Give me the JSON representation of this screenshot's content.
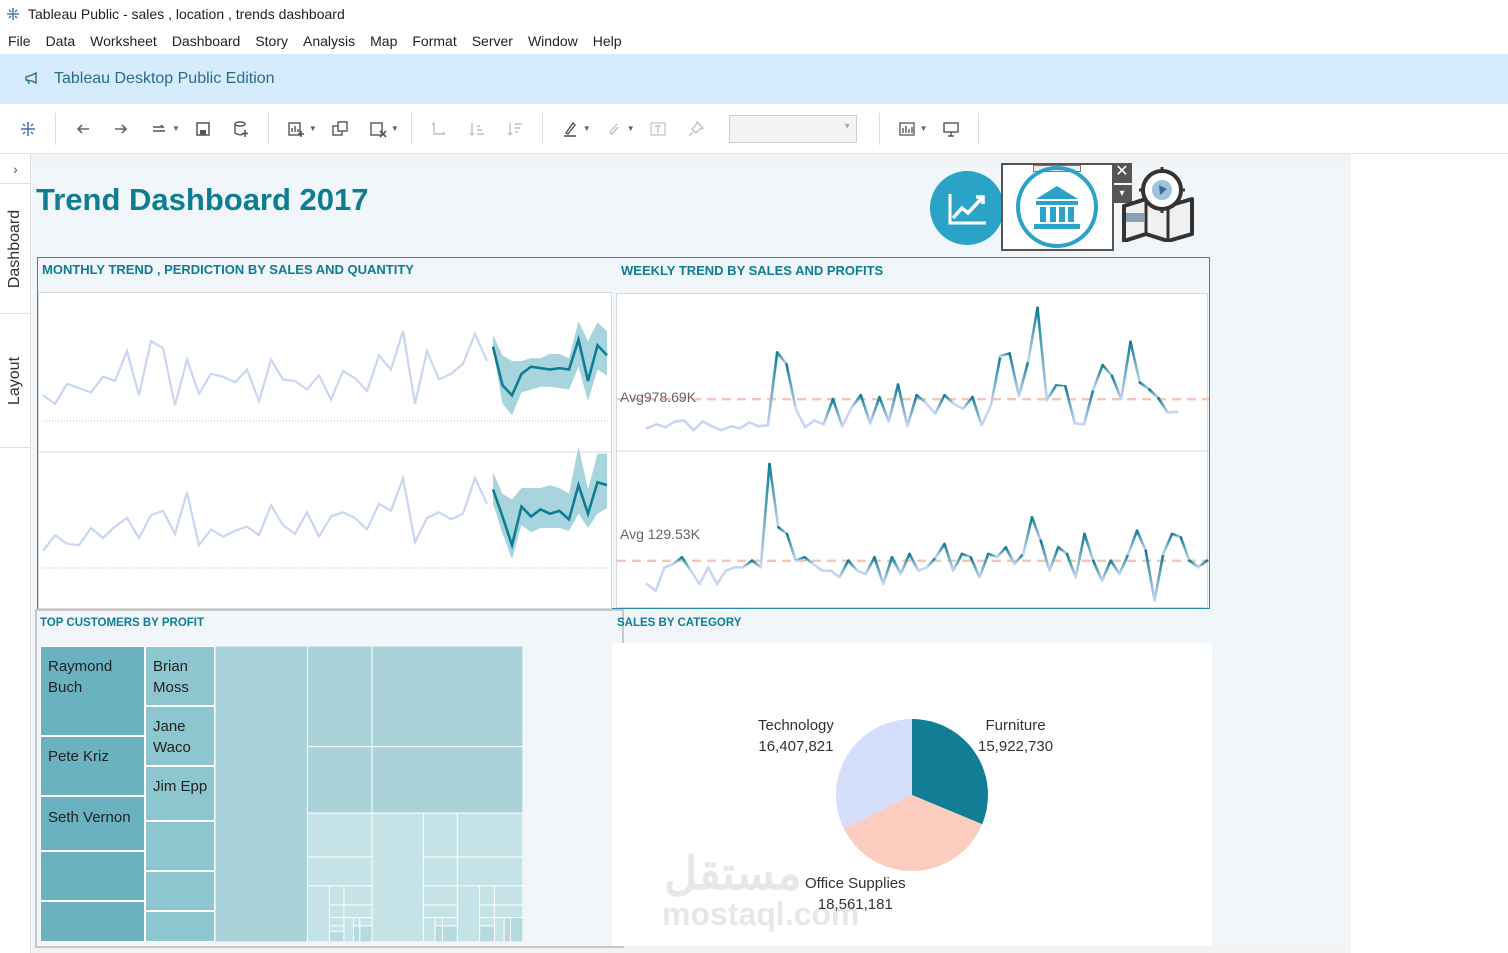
{
  "window": {
    "title": "Tableau Public - sales , location , trends dashboard"
  },
  "menu": [
    "File",
    "Data",
    "Worksheet",
    "Dashboard",
    "Story",
    "Analysis",
    "Map",
    "Format",
    "Server",
    "Window",
    "Help"
  ],
  "banner": {
    "text": "Tableau Desktop Public Edition"
  },
  "sidebar": {
    "tabs": [
      "Dashboard",
      "Layout"
    ],
    "expand_glyph": "›"
  },
  "dashboard": {
    "title": "Trend Dashboard 2017",
    "close_glyph": "✕",
    "caret_glyph": "▾",
    "icons": [
      "trend-chart-icon",
      "bank-icon",
      "map-icon"
    ]
  },
  "monthly": {
    "title": "MONTHLY TREND , PERDICTION BY SALES AND QUANTITY"
  },
  "weekly": {
    "title": "WEEKLY TREND BY SALES AND PROFITS",
    "sales_avg_label": "Avg978.69K",
    "profit_avg_label": "Avg 129.53K"
  },
  "customers": {
    "title": "TOP CUSTOMERS BY PROFIT",
    "top": [
      {
        "name": "Raymond Buch",
        "lines": [
          "Raymond",
          "Buch"
        ]
      },
      {
        "name": "Pete Kriz",
        "lines": [
          "Pete Kriz"
        ]
      },
      {
        "name": "Seth Vernon",
        "lines": [
          "Seth Vernon"
        ]
      },
      {
        "name": "Brian Moss",
        "lines": [
          "Brian",
          "Moss"
        ]
      },
      {
        "name": "Jane Waco",
        "lines": [
          "Jane",
          "Waco"
        ]
      },
      {
        "name": "Jim Epp",
        "lines": [
          "Jim Epp"
        ]
      }
    ]
  },
  "category": {
    "title": "SALES BY CATEGORY",
    "labels": {
      "technology_name": "Technology",
      "technology_value": "16,407,821",
      "furniture_name": "Furniture",
      "furniture_value": "15,922,730",
      "office_name": "Office Supplies",
      "office_value": "18,561,181"
    }
  },
  "watermark": {
    "arabic": "مستقل",
    "latin": "mostaql.com"
  },
  "colors": {
    "accent": "#0e7d93",
    "history_line": "#c9d6f3",
    "forecast_band": "#a8d5dd",
    "avg_line": "#f7c5b6",
    "pie_furniture": "#117e96",
    "pie_office": "#fbcdbf",
    "pie_technology": "#d5dffb"
  },
  "chart_data": [
    {
      "type": "line",
      "name": "monthly-sales",
      "history": [
        18,
        12,
        26,
        23,
        20,
        31,
        28,
        49,
        18,
        56,
        51,
        11,
        43,
        19,
        33,
        31,
        27,
        36,
        14,
        43,
        29,
        28,
        22,
        32,
        15,
        35,
        30,
        21,
        46,
        36,
        63,
        12,
        49,
        29,
        33,
        40,
        61,
        42
      ],
      "forecast": [
        52,
        25,
        18,
        33,
        38,
        37,
        36,
        37,
        36,
        57,
        28,
        53,
        46
      ],
      "band_upper": [
        60,
        46,
        42,
        42,
        44,
        44,
        47,
        47,
        44,
        70,
        56,
        69,
        63
      ],
      "band_lower": [
        50,
        12,
        4,
        20,
        22,
        24,
        24,
        23,
        22,
        38,
        14,
        36,
        32
      ]
    },
    {
      "type": "line",
      "name": "monthly-quantity",
      "history": [
        12,
        23,
        17,
        16,
        28,
        21,
        29,
        35,
        21,
        37,
        40,
        24,
        53,
        16,
        27,
        22,
        26,
        29,
        23,
        44,
        30,
        24,
        39,
        22,
        36,
        39,
        35,
        27,
        45,
        40,
        63,
        18,
        35,
        39,
        34,
        38,
        63,
        45
      ],
      "forecast": [
        55,
        36,
        16,
        43,
        36,
        41,
        38,
        40,
        34,
        58,
        38,
        60,
        58
      ],
      "band_upper": [
        67,
        52,
        48,
        56,
        56,
        56,
        58,
        56,
        52,
        85,
        55,
        80,
        80
      ],
      "band_lower": [
        45,
        24,
        6,
        30,
        25,
        28,
        28,
        28,
        26,
        38,
        28,
        38,
        42
      ]
    },
    {
      "type": "line",
      "name": "weekly-sales",
      "avg": 978.69,
      "unit": "K",
      "values": [
        680,
        720,
        690,
        750,
        760,
        660,
        750,
        700,
        660,
        700,
        680,
        740,
        700,
        710,
        1460,
        1340,
        880,
        690,
        760,
        720,
        980,
        700,
        890,
        1020,
        730,
        1000,
        750,
        1130,
        700,
        1020,
        940,
        830,
        1020,
        930,
        880,
        1000,
        710,
        920,
        1420,
        1450,
        1010,
        1370,
        1920,
        970,
        1120,
        1110,
        730,
        720,
        1080,
        1330,
        1220,
        980,
        1570,
        1150,
        1080,
        990,
        840,
        850
      ]
    },
    {
      "type": "line",
      "name": "weekly-profit",
      "avg": 129.53,
      "unit": "K",
      "values": [
        60,
        40,
        110,
        120,
        140,
        100,
        60,
        110,
        60,
        100,
        110,
        110,
        130,
        110,
        420,
        230,
        210,
        130,
        140,
        120,
        100,
        100,
        80,
        130,
        100,
        90,
        140,
        60,
        140,
        90,
        150,
        100,
        110,
        140,
        180,
        100,
        150,
        140,
        80,
        150,
        140,
        170,
        120,
        150,
        260,
        190,
        100,
        170,
        150,
        80,
        210,
        130,
        70,
        130,
        90,
        150,
        220,
        160,
        10,
        150,
        210,
        200,
        130,
        110,
        130
      ]
    },
    {
      "type": "pie",
      "name": "sales-by-category",
      "categories": [
        "Furniture",
        "Office Supplies",
        "Technology"
      ],
      "values": [
        15922730,
        18561181,
        16407821
      ]
    }
  ]
}
